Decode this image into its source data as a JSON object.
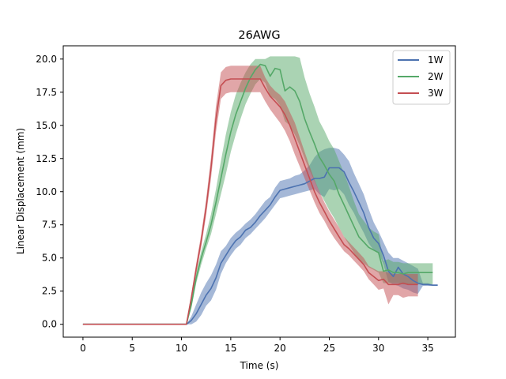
{
  "chart_data": {
    "type": "line",
    "title": "26AWG",
    "xlabel": "Time (s)",
    "ylabel": "Linear Displacement (mm)",
    "xlim": [
      -2,
      37.8
    ],
    "ylim": [
      -0.97,
      21.0
    ],
    "xticks": [
      0,
      5,
      10,
      15,
      20,
      25,
      30,
      35
    ],
    "yticks": [
      0.0,
      2.5,
      5.0,
      7.5,
      10.0,
      12.5,
      15.0,
      17.5,
      20.0
    ],
    "ytick_labels": [
      "0.0",
      "2.5",
      "5.0",
      "7.5",
      "10.0",
      "12.5",
      "15.0",
      "17.5",
      "20.0"
    ],
    "grid": false,
    "legend_position": "top-right",
    "series": [
      {
        "name": "1W",
        "color": "#4c72b0",
        "band_color": "#4c72b0",
        "x": [
          0,
          10.5,
          11,
          11.5,
          12,
          12.5,
          13,
          13.5,
          14,
          14.5,
          15,
          15.5,
          16,
          16.5,
          17,
          17.5,
          18,
          18.5,
          19,
          19.5,
          20,
          20.5,
          21,
          21.5,
          22,
          22.5,
          23,
          23.5,
          24,
          24.5,
          25,
          25.5,
          26,
          26.5,
          27,
          27.5,
          28,
          28.5,
          29,
          29.5,
          30,
          30.5,
          31,
          31.5,
          32,
          32.5,
          33,
          33.5,
          34,
          34.5,
          35,
          35.5,
          36
        ],
        "y": [
          0,
          0,
          0.3,
          0.8,
          1.5,
          2.2,
          2.7,
          3.5,
          4.6,
          5.2,
          5.8,
          6.3,
          6.6,
          7.1,
          7.3,
          7.7,
          8.2,
          8.6,
          9.0,
          9.6,
          10.1,
          10.2,
          10.3,
          10.4,
          10.5,
          10.6,
          10.8,
          11.0,
          11.0,
          11.1,
          11.8,
          11.8,
          11.8,
          11.5,
          10.7,
          10.0,
          9.2,
          8.4,
          7.3,
          6.5,
          6.1,
          5.2,
          4.0,
          3.6,
          4.3,
          3.8,
          3.6,
          3.3,
          3.1,
          3.0,
          3.0,
          2.95,
          2.95
        ],
        "lower": [
          0,
          0,
          0.0,
          0.2,
          0.7,
          1.4,
          1.8,
          2.6,
          3.8,
          4.6,
          5.2,
          5.7,
          6.0,
          6.5,
          6.8,
          7.2,
          7.6,
          8.0,
          8.5,
          9.0,
          9.5,
          9.6,
          9.7,
          9.8,
          9.9,
          10.0,
          10.1,
          10.2,
          9.8,
          9.6,
          10.2,
          10.1,
          10.2,
          9.8,
          9.0,
          8.4,
          7.6,
          6.9,
          6.1,
          5.6,
          5.4,
          4.5,
          3.2,
          3.0,
          2.9,
          2.7,
          2.6,
          2.4,
          2.3,
          2.9,
          2.9,
          2.9,
          2.9
        ],
        "upper": [
          0,
          0,
          0.6,
          1.5,
          2.4,
          3.1,
          3.7,
          4.5,
          5.5,
          5.9,
          6.5,
          6.9,
          7.2,
          7.6,
          7.9,
          8.3,
          8.8,
          9.3,
          9.6,
          10.3,
          10.8,
          10.9,
          11.0,
          11.2,
          11.3,
          11.6,
          12.0,
          12.6,
          13.0,
          13.2,
          13.3,
          13.3,
          13.2,
          12.8,
          12.3,
          11.4,
          10.6,
          9.8,
          8.7,
          7.7,
          7.0,
          6.2,
          5.4,
          5.0,
          5.0,
          4.8,
          4.6,
          4.4,
          4.2,
          3.1,
          3.1,
          3.0,
          3.0
        ]
      },
      {
        "name": "2W",
        "color": "#55a868",
        "band_color": "#55a868",
        "x": [
          0,
          10.5,
          11,
          11.5,
          12,
          12.5,
          13,
          13.5,
          14,
          14.5,
          15,
          15.5,
          16,
          16.5,
          17,
          17.5,
          18,
          18.5,
          19,
          19.5,
          20,
          20.5,
          21,
          21.5,
          22,
          22.5,
          23,
          23.5,
          24,
          24.5,
          25,
          25.5,
          26,
          26.5,
          27,
          27.5,
          28,
          28.5,
          29,
          29.5,
          30,
          30.5,
          31,
          31.5,
          32,
          32.5,
          33,
          33.5,
          34,
          34.5,
          35,
          35.5
        ],
        "y": [
          0,
          0,
          1.5,
          3.5,
          5.0,
          6.2,
          7.5,
          9.2,
          11.0,
          12.8,
          14.5,
          15.8,
          16.8,
          17.8,
          18.6,
          19.2,
          19.6,
          19.5,
          18.7,
          19.3,
          19.2,
          17.6,
          17.9,
          17.6,
          16.8,
          15.5,
          14.5,
          13.6,
          12.6,
          12.0,
          11.3,
          10.8,
          9.8,
          9.0,
          8.2,
          7.4,
          6.6,
          6.2,
          5.8,
          5.6,
          5.4,
          4.0,
          4.1,
          3.9,
          3.9,
          3.8,
          3.9,
          3.9,
          3.9,
          3.9,
          3.9,
          3.9
        ],
        "lower": [
          0,
          0,
          1.2,
          3.1,
          4.5,
          5.7,
          6.8,
          8.3,
          9.8,
          11.3,
          13.0,
          14.3,
          15.5,
          16.6,
          17.4,
          18.1,
          18.5,
          18.2,
          17.2,
          17.0,
          16.5,
          15.3,
          15.0,
          14.3,
          13.5,
          12.5,
          11.6,
          10.8,
          10.0,
          9.3,
          8.6,
          8.0,
          7.3,
          6.6,
          6.0,
          5.4,
          4.9,
          4.6,
          4.3,
          4.1,
          3.9,
          3.1,
          3.1,
          3.1,
          3.1,
          3.0,
          3.0,
          3.0,
          3.0,
          3.0,
          3.0,
          3.0
        ],
        "upper": [
          0,
          0,
          1.8,
          3.9,
          5.5,
          6.8,
          8.3,
          10.2,
          12.3,
          14.3,
          16.0,
          17.3,
          18.2,
          19.0,
          19.6,
          20.0,
          20.0,
          20.0,
          20.2,
          20.2,
          20.2,
          20.2,
          20.2,
          20.2,
          20.1,
          18.6,
          17.4,
          16.4,
          15.3,
          14.6,
          13.8,
          13.2,
          12.3,
          11.4,
          10.4,
          9.3,
          8.3,
          7.8,
          7.3,
          7.0,
          6.8,
          4.8,
          4.9,
          4.7,
          4.7,
          4.6,
          4.6,
          4.6,
          4.6,
          4.6,
          4.6,
          4.6
        ]
      },
      {
        "name": "3W",
        "color": "#c44e52",
        "band_color": "#c44e52",
        "x": [
          0,
          10.5,
          11,
          11.5,
          12,
          12.5,
          13,
          13.5,
          14,
          14.5,
          15,
          15.5,
          16,
          16.5,
          17,
          17.5,
          18,
          18.5,
          19,
          19.5,
          20,
          20.5,
          21,
          21.5,
          22,
          22.5,
          23,
          23.5,
          24,
          24.5,
          25,
          25.5,
          26,
          26.5,
          27,
          27.5,
          28,
          28.5,
          29,
          29.5,
          30,
          30.5,
          31,
          31.5,
          32,
          32.5,
          33,
          33.5,
          34
        ],
        "y": [
          0,
          0,
          2.0,
          4.2,
          6.3,
          8.8,
          11.8,
          15.5,
          18.0,
          18.4,
          18.5,
          18.5,
          18.5,
          18.5,
          18.5,
          18.5,
          18.5,
          17.8,
          17.2,
          16.8,
          16.4,
          15.8,
          15.0,
          14.0,
          13.0,
          12.0,
          11.0,
          10.0,
          9.2,
          8.5,
          7.8,
          7.2,
          6.6,
          6.0,
          5.7,
          5.3,
          4.9,
          4.5,
          3.9,
          3.6,
          3.3,
          3.4,
          3.0,
          3.0,
          3.0,
          3.1,
          3.0,
          3.0,
          3.0
        ],
        "lower": [
          0,
          0,
          1.7,
          3.8,
          5.8,
          8.2,
          11.0,
          14.5,
          17.0,
          17.4,
          17.5,
          17.5,
          17.5,
          17.5,
          17.5,
          17.5,
          17.5,
          16.8,
          16.2,
          15.7,
          15.2,
          14.6,
          13.8,
          12.8,
          11.9,
          11.0,
          10.1,
          9.2,
          8.4,
          7.8,
          7.1,
          6.5,
          6.0,
          5.5,
          5.2,
          4.8,
          4.4,
          4.0,
          3.4,
          3.0,
          2.6,
          2.7,
          1.5,
          2.2,
          2.2,
          2.0,
          2.1,
          2.1,
          2.1
        ],
        "upper": [
          0,
          0,
          2.3,
          4.6,
          6.8,
          9.4,
          12.6,
          16.5,
          19.0,
          19.4,
          19.5,
          19.5,
          19.5,
          19.5,
          19.5,
          19.5,
          19.5,
          18.6,
          18.0,
          17.6,
          17.3,
          16.8,
          16.0,
          15.2,
          14.1,
          13.0,
          11.9,
          10.9,
          10.0,
          9.2,
          8.5,
          7.9,
          7.3,
          6.6,
          6.2,
          5.8,
          5.4,
          5.0,
          4.4,
          4.2,
          4.0,
          4.0,
          3.9,
          3.8,
          3.8,
          3.8,
          3.8,
          3.8,
          3.8
        ]
      }
    ]
  }
}
